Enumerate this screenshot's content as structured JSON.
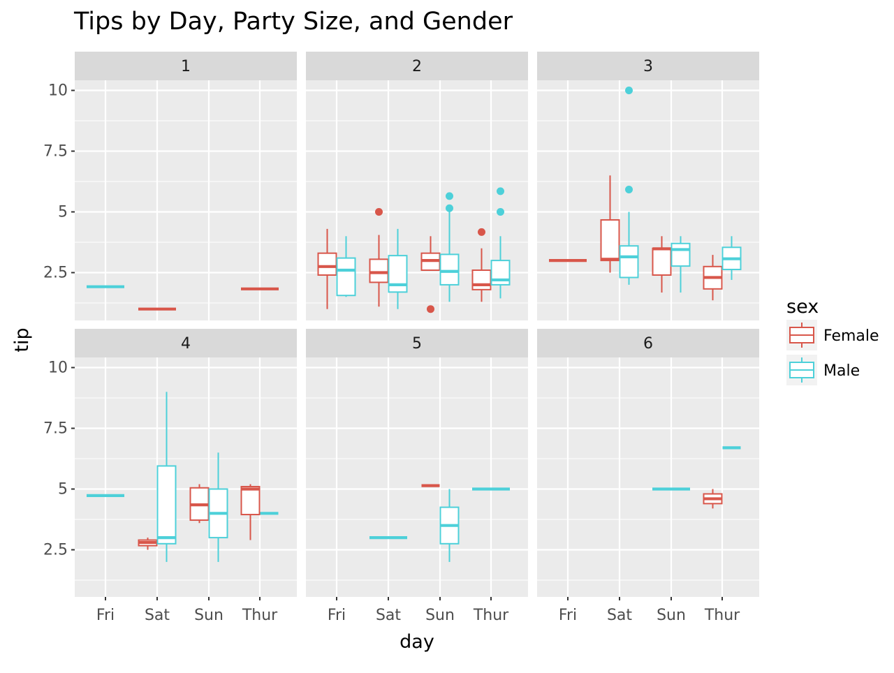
{
  "chart_data": {
    "type": "box",
    "title": "Tips by Day, Party Size, and Gender",
    "xlabel": "day",
    "ylabel": "tip",
    "facet_variable": "size",
    "facet_layout": "2 rows x 3 columns, shared axes",
    "categories": [
      "Fri",
      "Sat",
      "Sun",
      "Thur"
    ],
    "yticks": [
      2.5,
      5,
      7.5,
      10
    ],
    "ylim": [
      0.5,
      10.5
    ],
    "grid": true,
    "legend": {
      "title": "sex",
      "position": "right",
      "entries": [
        {
          "name": "Female",
          "color": "#D8564A"
        },
        {
          "name": "Male",
          "color": "#4DD0D9"
        }
      ]
    },
    "facets": [
      {
        "label": "1",
        "boxes": [
          {
            "day": "Fri",
            "sex": "Male",
            "min": 1.92,
            "q1": 1.92,
            "median": 1.92,
            "q3": 1.92,
            "max": 1.92,
            "outliers": []
          },
          {
            "day": "Sat",
            "sex": "Female",
            "min": 1.0,
            "q1": 1.0,
            "median": 1.0,
            "q3": 1.0,
            "max": 1.0,
            "outliers": []
          },
          {
            "day": "Thur",
            "sex": "Female",
            "min": 1.83,
            "q1": 1.83,
            "median": 1.83,
            "q3": 1.83,
            "max": 1.83,
            "outliers": []
          }
        ]
      },
      {
        "label": "2",
        "boxes": [
          {
            "day": "Fri",
            "sex": "Female",
            "min": 1.0,
            "q1": 2.4,
            "median": 2.75,
            "q3": 3.3,
            "max": 4.3,
            "outliers": []
          },
          {
            "day": "Fri",
            "sex": "Male",
            "min": 1.5,
            "q1": 1.56,
            "median": 2.6,
            "q3": 3.1,
            "max": 4.0,
            "outliers": []
          },
          {
            "day": "Sat",
            "sex": "Female",
            "min": 1.1,
            "q1": 2.1,
            "median": 2.5,
            "q3": 3.05,
            "max": 4.05,
            "outliers": [
              5.0
            ]
          },
          {
            "day": "Sat",
            "sex": "Male",
            "min": 1.0,
            "q1": 1.7,
            "median": 2.0,
            "q3": 3.2,
            "max": 4.3,
            "outliers": []
          },
          {
            "day": "Sun",
            "sex": "Female",
            "min": 2.6,
            "q1": 2.6,
            "median": 3.0,
            "q3": 3.3,
            "max": 4.0,
            "outliers": [
              1.0
            ]
          },
          {
            "day": "Sun",
            "sex": "Male",
            "min": 1.3,
            "q1": 2.0,
            "median": 2.55,
            "q3": 3.25,
            "max": 5.0,
            "outliers": [
              5.65,
              5.15
            ]
          },
          {
            "day": "Thur",
            "sex": "Female",
            "min": 1.3,
            "q1": 1.8,
            "median": 2.0,
            "q3": 2.6,
            "max": 3.5,
            "outliers": [
              4.17
            ]
          },
          {
            "day": "Thur",
            "sex": "Male",
            "min": 1.44,
            "q1": 2.0,
            "median": 2.2,
            "q3": 3.0,
            "max": 4.0,
            "outliers": [
              5.85,
              5.0
            ]
          }
        ]
      },
      {
        "label": "3",
        "boxes": [
          {
            "day": "Fri",
            "sex": "Female",
            "min": 3.0,
            "q1": 3.0,
            "median": 3.0,
            "q3": 3.0,
            "max": 3.0,
            "outliers": []
          },
          {
            "day": "Sat",
            "sex": "Female",
            "min": 2.5,
            "q1": 3.0,
            "median": 3.05,
            "q3": 4.67,
            "max": 6.5,
            "outliers": []
          },
          {
            "day": "Sat",
            "sex": "Male",
            "min": 2.0,
            "q1": 2.3,
            "median": 3.15,
            "q3": 3.6,
            "max": 5.0,
            "outliers": [
              10.0,
              5.92
            ]
          },
          {
            "day": "Sun",
            "sex": "Female",
            "min": 1.68,
            "q1": 2.4,
            "median": 3.48,
            "q3": 3.5,
            "max": 4.0,
            "outliers": []
          },
          {
            "day": "Sun",
            "sex": "Male",
            "min": 1.68,
            "q1": 2.77,
            "median": 3.45,
            "q3": 3.7,
            "max": 4.0,
            "outliers": []
          },
          {
            "day": "Thur",
            "sex": "Female",
            "min": 1.36,
            "q1": 1.83,
            "median": 2.3,
            "q3": 2.75,
            "max": 3.23,
            "outliers": []
          },
          {
            "day": "Thur",
            "sex": "Male",
            "min": 2.2,
            "q1": 2.63,
            "median": 3.07,
            "q3": 3.54,
            "max": 4.0,
            "outliers": []
          }
        ]
      },
      {
        "label": "4",
        "boxes": [
          {
            "day": "Fri",
            "sex": "Male",
            "min": 4.73,
            "q1": 4.73,
            "median": 4.73,
            "q3": 4.73,
            "max": 4.73,
            "outliers": []
          },
          {
            "day": "Sat",
            "sex": "Female",
            "min": 2.5,
            "q1": 2.67,
            "median": 2.8,
            "q3": 2.9,
            "max": 3.0,
            "outliers": []
          },
          {
            "day": "Sat",
            "sex": "Male",
            "min": 2.0,
            "q1": 2.75,
            "median": 3.0,
            "q3": 5.95,
            "max": 9.0,
            "outliers": []
          },
          {
            "day": "Sun",
            "sex": "Female",
            "min": 3.6,
            "q1": 3.72,
            "median": 4.35,
            "q3": 5.05,
            "max": 5.2,
            "outliers": []
          },
          {
            "day": "Sun",
            "sex": "Male",
            "min": 2.0,
            "q1": 3.0,
            "median": 4.0,
            "q3": 5.0,
            "max": 6.5,
            "outliers": []
          },
          {
            "day": "Thur",
            "sex": "Female",
            "min": 2.9,
            "q1": 3.95,
            "median": 5.0,
            "q3": 5.1,
            "max": 5.2,
            "outliers": []
          },
          {
            "day": "Thur",
            "sex": "Male",
            "min": 4.0,
            "q1": 4.0,
            "median": 4.0,
            "q3": 4.0,
            "max": 4.0,
            "outliers": []
          }
        ]
      },
      {
        "label": "5",
        "boxes": [
          {
            "day": "Sat",
            "sex": "Male",
            "min": 3.0,
            "q1": 3.0,
            "median": 3.0,
            "q3": 3.0,
            "max": 3.0,
            "outliers": []
          },
          {
            "day": "Sun",
            "sex": "Female",
            "min": 5.14,
            "q1": 5.14,
            "median": 5.14,
            "q3": 5.14,
            "max": 5.14,
            "outliers": []
          },
          {
            "day": "Sun",
            "sex": "Male",
            "min": 2.0,
            "q1": 2.75,
            "median": 3.5,
            "q3": 4.25,
            "max": 5.0,
            "outliers": []
          },
          {
            "day": "Thur",
            "sex": "Male",
            "min": 5.0,
            "q1": 5.0,
            "median": 5.0,
            "q3": 5.0,
            "max": 5.0,
            "outliers": []
          }
        ]
      },
      {
        "label": "6",
        "boxes": [
          {
            "day": "Sun",
            "sex": "Male",
            "min": 5.0,
            "q1": 5.0,
            "median": 5.0,
            "q3": 5.0,
            "max": 5.0,
            "outliers": []
          },
          {
            "day": "Thur",
            "sex": "Female",
            "min": 4.2,
            "q1": 4.4,
            "median": 4.6,
            "q3": 4.8,
            "max": 5.0,
            "outliers": []
          },
          {
            "day": "Thur",
            "sex": "Male",
            "min": 6.7,
            "q1": 6.7,
            "median": 6.7,
            "q3": 6.7,
            "max": 6.7,
            "outliers": []
          }
        ]
      }
    ]
  }
}
